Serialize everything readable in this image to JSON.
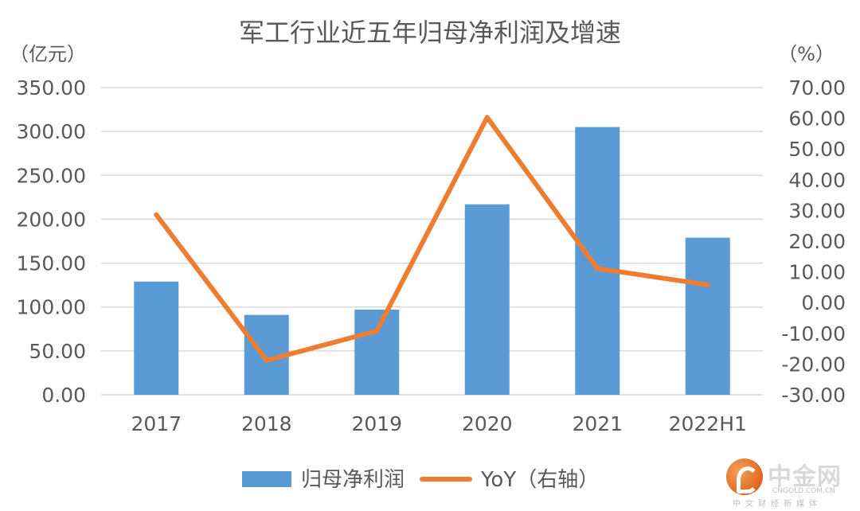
{
  "chart_data": {
    "type": "bar+line",
    "title": "军工行业近五年归母净利润及增速",
    "left_unit": "（亿元）",
    "right_unit": "（%）",
    "categories": [
      "2017",
      "2018",
      "2019",
      "2020",
      "2021",
      "2022H1"
    ],
    "series": [
      {
        "name": "归母净利润",
        "type": "bar",
        "axis": "left",
        "color": "#5B9BD5",
        "values": [
          129,
          91,
          97,
          217,
          305,
          179
        ]
      },
      {
        "name": "YoY（右轴）",
        "type": "line",
        "axis": "right",
        "color": "#ED7D31",
        "values": [
          28.6,
          -18.8,
          -9.2,
          60.3,
          11.1,
          5.8
        ]
      }
    ],
    "left_axis": {
      "min": 0,
      "max": 350,
      "step": 50,
      "tick_labels": [
        "0.00",
        "50.00",
        "100.00",
        "150.00",
        "200.00",
        "250.00",
        "300.00",
        "350.00"
      ]
    },
    "right_axis": {
      "min": -30,
      "max": 70,
      "step": 10,
      "tick_labels": [
        "-30.00",
        "-20.00",
        "-10.00",
        "0.00",
        "10.00",
        "20.00",
        "30.00",
        "40.00",
        "50.00",
        "60.00",
        "70.00"
      ]
    },
    "grid": true,
    "legend_position": "bottom"
  },
  "watermark": {
    "name_cn": "中金网",
    "domain": "CNGOLD.COM.CN",
    "tagline": "中文财经新媒体"
  }
}
